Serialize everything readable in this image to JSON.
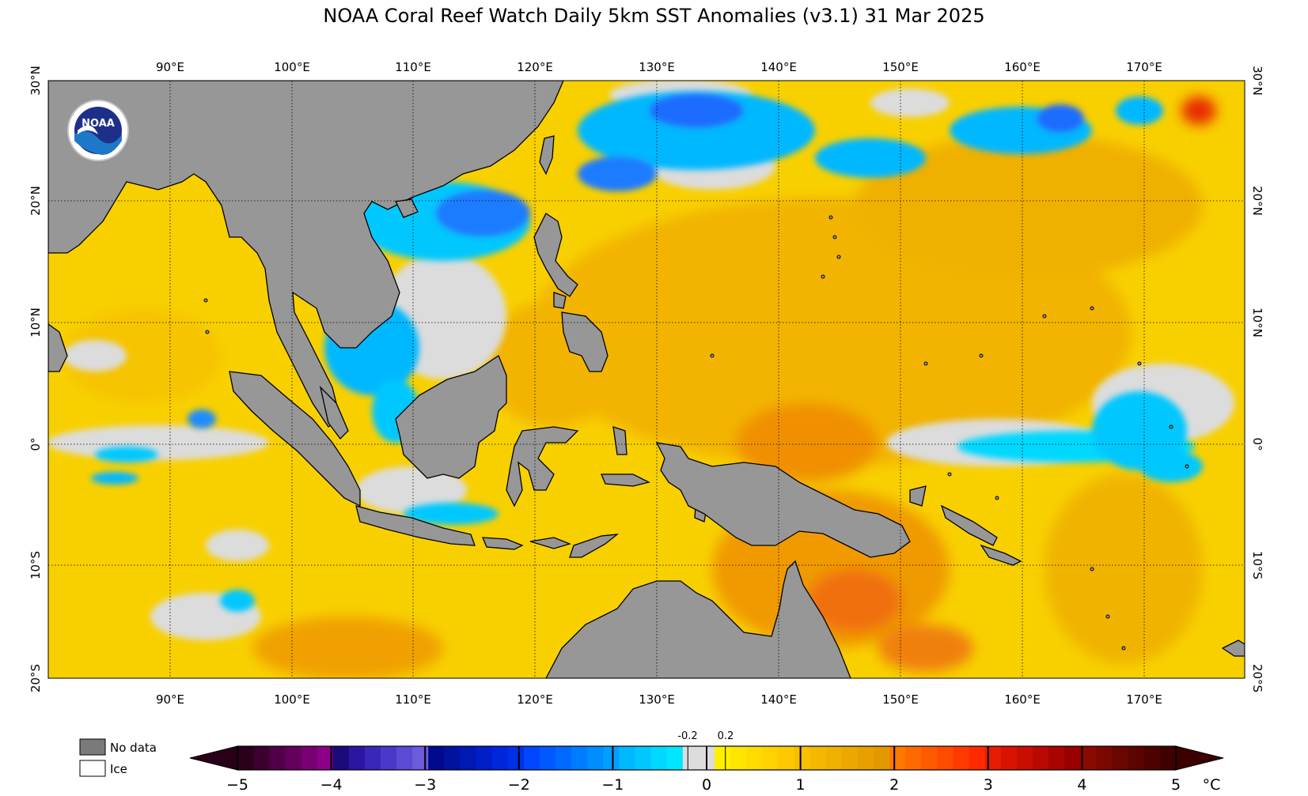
{
  "title": "NOAA Coral Reef Watch Daily 5km SST Anomalies  (v3.1)   31 Mar 2025",
  "logo": {
    "text": "NOAA",
    "icon": "noaa-logo-icon"
  },
  "lon_labels": [
    "90°E",
    "100°E",
    "110°E",
    "120°E",
    "130°E",
    "140°E",
    "150°E",
    "160°E",
    "170°E"
  ],
  "lat_labels": [
    "30°N",
    "20°N",
    "10°N",
    "0°",
    "10°S",
    "20°S"
  ],
  "legend": {
    "no_data": "No data",
    "ice": "Ice"
  },
  "colorbar": {
    "ticks": [
      "−5",
      "−4",
      "−3",
      "−2",
      "−1",
      "0",
      "1",
      "2",
      "3",
      "4",
      "5"
    ],
    "unit": "°C",
    "small_ticks": [
      "-0.2",
      "0.2"
    ],
    "colors": [
      "#2a0018",
      "#3c0030",
      "#500046",
      "#64005c",
      "#780072",
      "#8c0088",
      "#1a0a7a",
      "#2a16a0",
      "#3a26b8",
      "#4a38c8",
      "#5a4ad4",
      "#6a5cdc",
      "#000a8c",
      "#0012a0",
      "#0018b4",
      "#001ec8",
      "#0026dc",
      "#0030e6",
      "#0046ff",
      "#0058ff",
      "#006aff",
      "#007cff",
      "#008eff",
      "#00a0ff",
      "#00b8ff",
      "#00c8ff",
      "#00d8ff",
      "#00e6ff",
      "#dcdcdc",
      "#dcdcdc",
      "#ffef00",
      "#ffe600",
      "#ffdc00",
      "#ffd200",
      "#ffc800",
      "#f8c000",
      "#f4b800",
      "#f0b000",
      "#eca800",
      "#e8a000",
      "#e49800",
      "#ff7800",
      "#ff6a00",
      "#ff5a00",
      "#ff4a00",
      "#ff3a00",
      "#ff2a00",
      "#e81c00",
      "#d81400",
      "#c80e00",
      "#b80800",
      "#a80400",
      "#980000",
      "#8a0a00",
      "#7a0800",
      "#6a0600",
      "#5c0400",
      "#4e0200",
      "#400000"
    ]
  }
}
